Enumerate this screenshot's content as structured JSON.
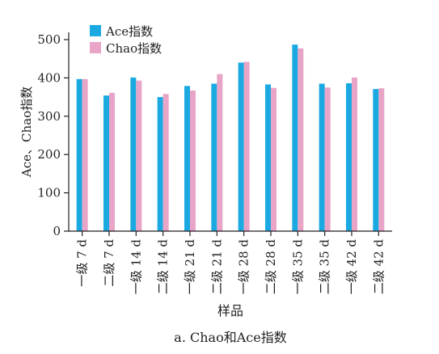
{
  "chart_data": {
    "type": "bar",
    "caption": "a. Chao和Ace指数",
    "xlabel": "样品",
    "ylabel": "Ace、Chao指数",
    "ylim": [
      0,
      500
    ],
    "yticks": [
      0,
      100,
      200,
      300,
      400,
      500
    ],
    "grid": false,
    "legend_position": "top-left",
    "categories": [
      "一级 7 d",
      "二级 7 d",
      "一级 14 d",
      "二级 14 d",
      "一级 21 d",
      "二级 21 d",
      "一级 28 d",
      "二级 28 d",
      "一级 35 d",
      "二级 35 d",
      "一级 42 d",
      "二级 42 d"
    ],
    "series": [
      {
        "name": "Ace指数",
        "color": "#1ba9e1",
        "values": [
          397,
          354,
          401,
          350,
          379,
          385,
          440,
          383,
          487,
          385,
          386,
          371
        ]
      },
      {
        "name": "Chao指数",
        "color": "#e8a5c8",
        "values": [
          397,
          361,
          393,
          358,
          367,
          410,
          442,
          374,
          477,
          375,
          401,
          373
        ]
      }
    ]
  }
}
